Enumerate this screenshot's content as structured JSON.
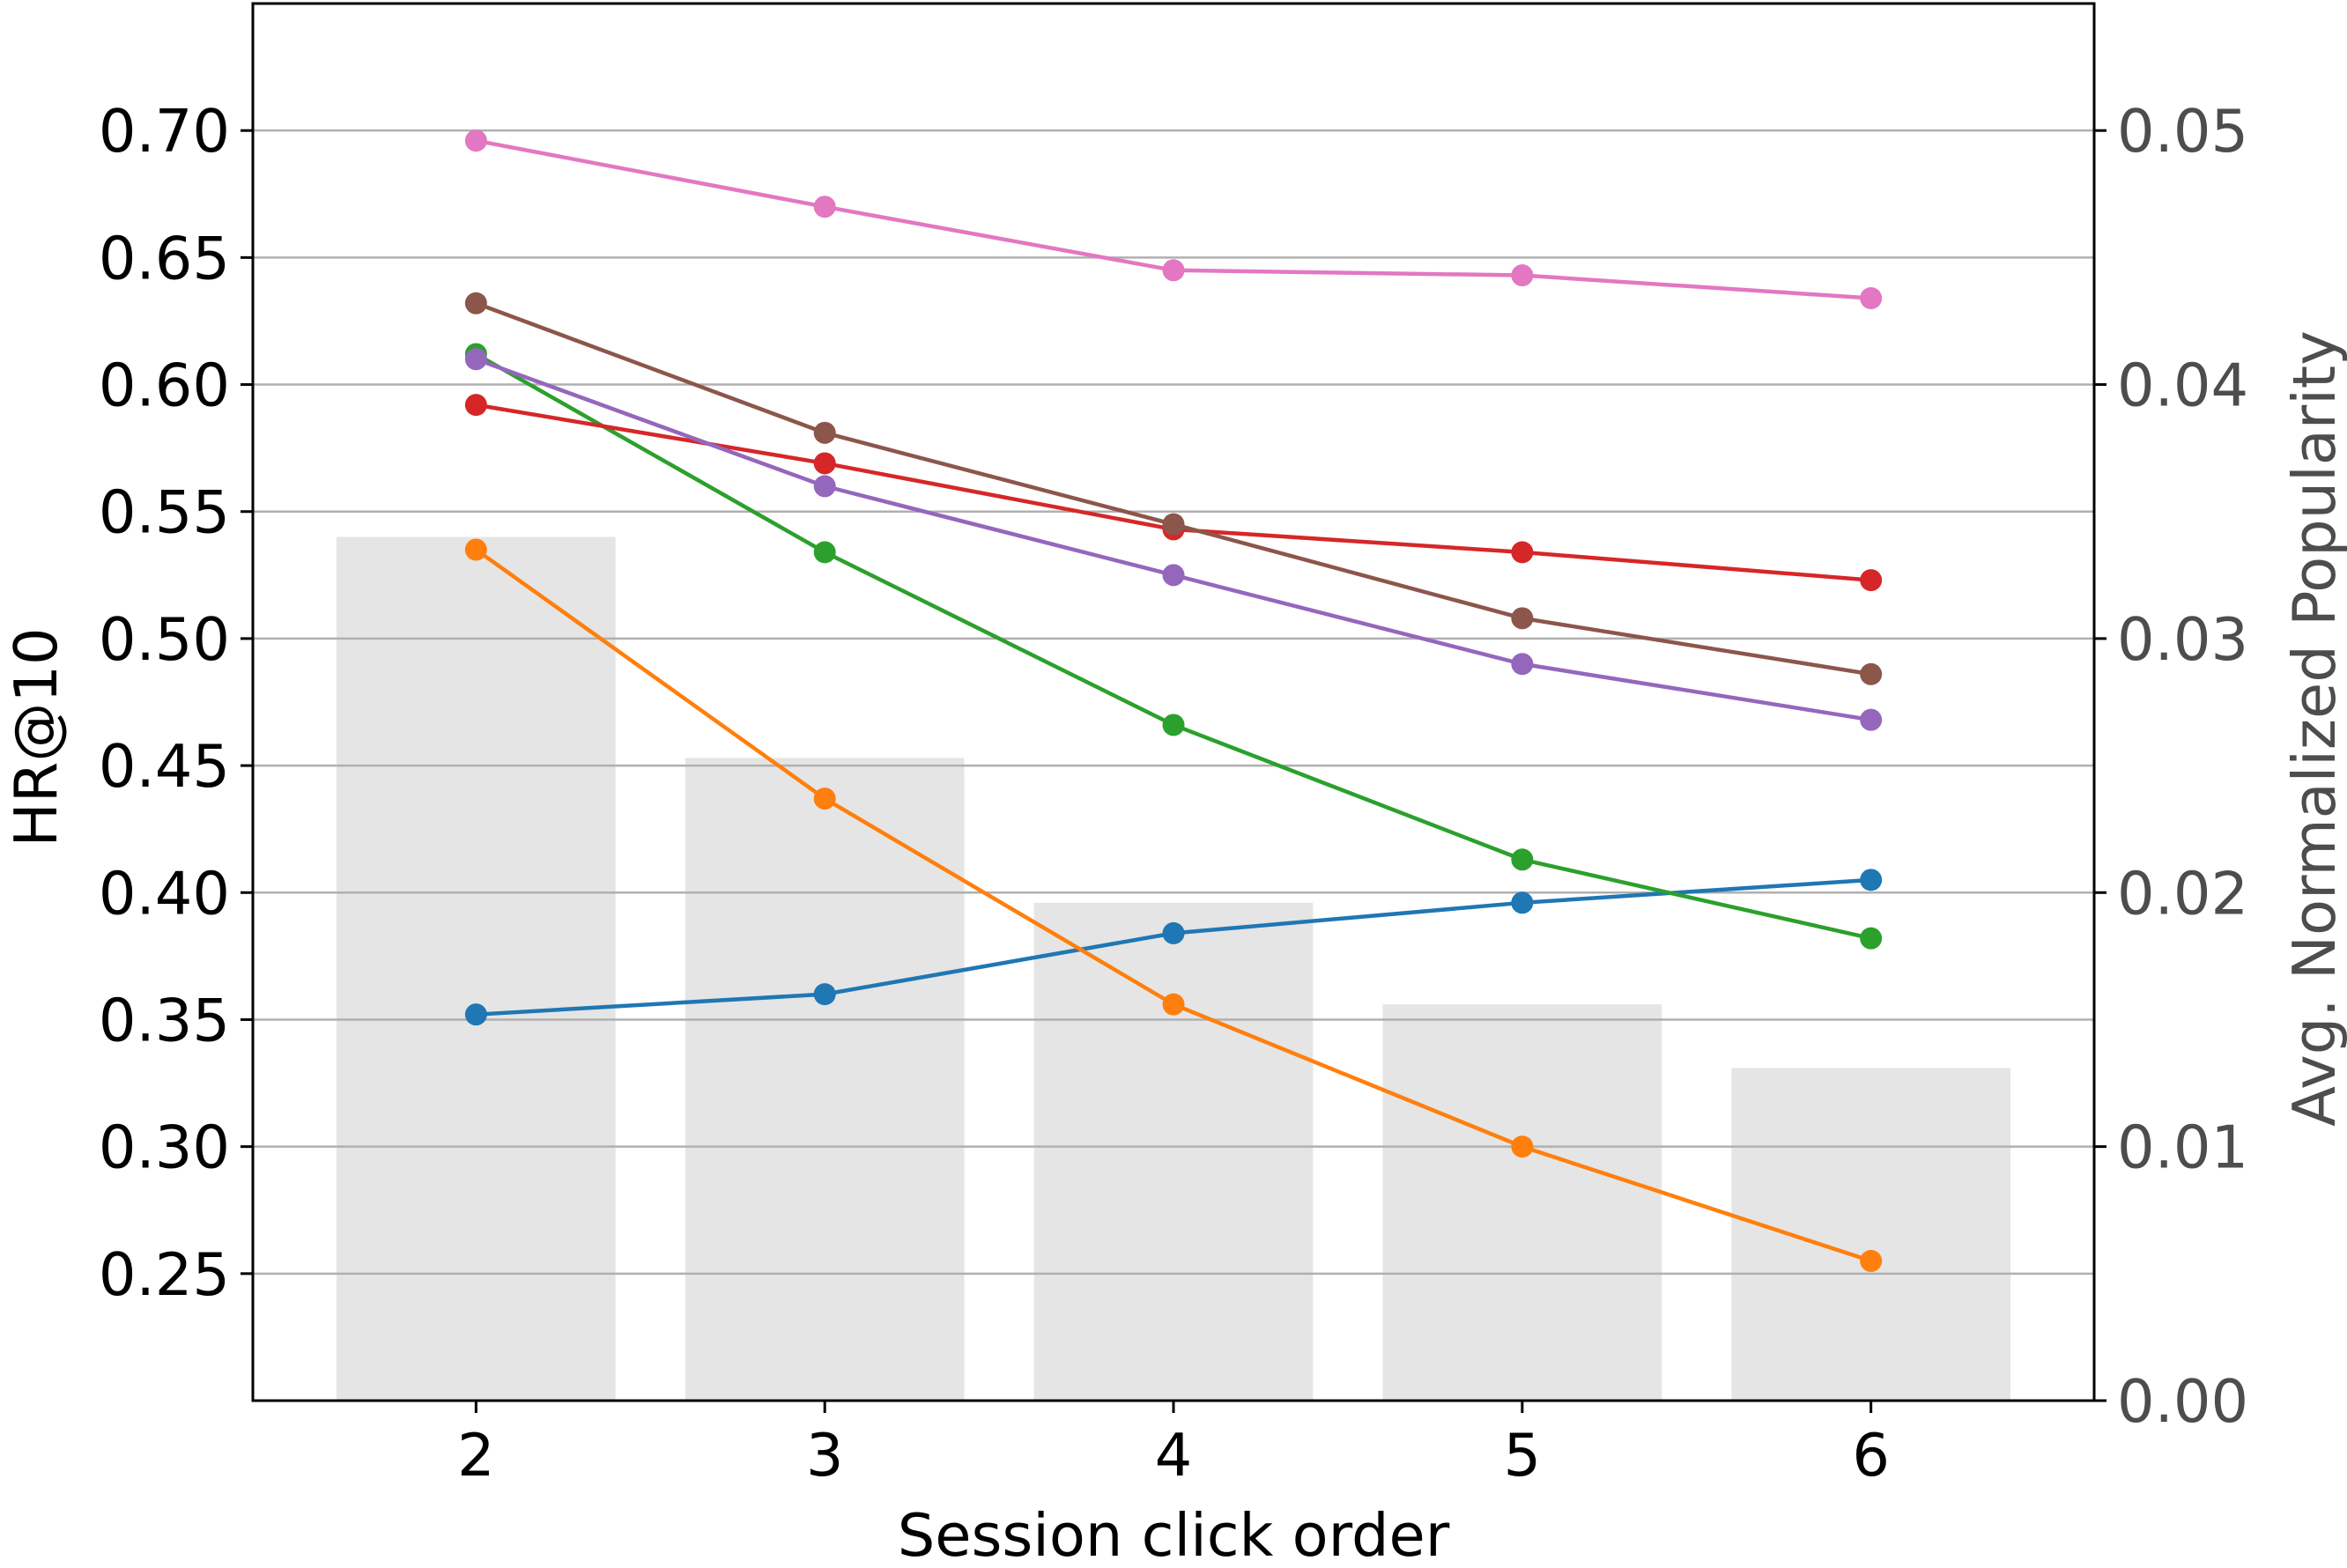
{
  "chart_data": {
    "type": "line",
    "xlabel": "Session click order",
    "ylabel": "HR@10",
    "y2label": "Avg. Normalized Popularity",
    "categories": [
      "2",
      "3",
      "4",
      "5",
      "6"
    ],
    "x": [
      2,
      3,
      4,
      5,
      6
    ],
    "ylim": [
      0.2,
      0.75
    ],
    "y2lim": [
      0.0,
      0.055
    ],
    "yticks": [
      "0.25",
      "0.30",
      "0.35",
      "0.40",
      "0.45",
      "0.50",
      "0.55",
      "0.60",
      "0.65",
      "0.70"
    ],
    "y2ticks": [
      "0.00",
      "0.01",
      "0.02",
      "0.03",
      "0.04",
      "0.05"
    ],
    "grid": true,
    "bars": {
      "axis": "right",
      "color": "#e5e5e5",
      "values": [
        0.034,
        0.0253,
        0.0196,
        0.0156,
        0.0131
      ]
    },
    "series": [
      {
        "color": "#1f77b4",
        "values": [
          0.352,
          0.36,
          0.384,
          0.396,
          0.405
        ]
      },
      {
        "color": "#ff7f0e",
        "values": [
          0.535,
          0.437,
          0.356,
          0.3,
          0.255
        ]
      },
      {
        "color": "#2ca02c",
        "values": [
          0.612,
          0.534,
          0.466,
          0.413,
          0.382
        ]
      },
      {
        "color": "#d62728",
        "values": [
          0.592,
          0.569,
          0.543,
          0.534,
          0.523
        ]
      },
      {
        "color": "#9467bd",
        "values": [
          0.61,
          0.56,
          0.525,
          0.49,
          0.468
        ]
      },
      {
        "color": "#8c564b",
        "values": [
          0.632,
          0.581,
          0.545,
          0.508,
          0.486
        ]
      },
      {
        "color": "#e377c2",
        "values": [
          0.696,
          0.67,
          0.645,
          0.643,
          0.634
        ]
      }
    ],
    "colors": {
      "axis": "#000000",
      "right_axis_text": "#4d4d4d",
      "grid": "#b0b0b0"
    }
  }
}
